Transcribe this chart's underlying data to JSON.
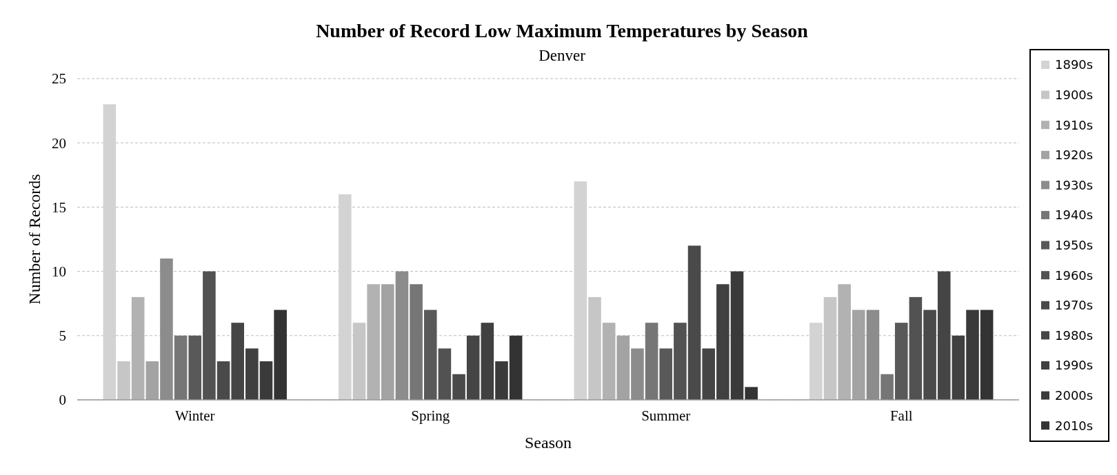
{
  "chart_data": {
    "type": "bar",
    "title": "Number of Record Low Maximum Temperatures by Season",
    "subtitle": "Denver",
    "xlabel": "Season",
    "ylabel": "Number of Records",
    "categories": [
      "Winter",
      "Spring",
      "Summer",
      "Fall"
    ],
    "series": [
      {
        "name": "1890s",
        "color": "#d3d3d3",
        "values": [
          23,
          16,
          17,
          6
        ]
      },
      {
        "name": "1900s",
        "color": "#c6c6c6",
        "values": [
          3,
          6,
          8,
          8
        ]
      },
      {
        "name": "1910s",
        "color": "#b2b2b2",
        "values": [
          8,
          9,
          6,
          9
        ]
      },
      {
        "name": "1920s",
        "color": "#a3a3a3",
        "values": [
          3,
          9,
          5,
          7
        ]
      },
      {
        "name": "1930s",
        "color": "#8c8c8c",
        "values": [
          11,
          10,
          4,
          7
        ]
      },
      {
        "name": "1940s",
        "color": "#767676",
        "values": [
          5,
          9,
          6,
          2
        ]
      },
      {
        "name": "1950s",
        "color": "#595959",
        "values": [
          5,
          7,
          4,
          6
        ]
      },
      {
        "name": "1960s",
        "color": "#525252",
        "values": [
          10,
          4,
          6,
          8
        ]
      },
      {
        "name": "1970s",
        "color": "#4a4a4a",
        "values": [
          3,
          2,
          12,
          7
        ]
      },
      {
        "name": "1980s",
        "color": "#454545",
        "values": [
          6,
          5,
          4,
          10
        ]
      },
      {
        "name": "1990s",
        "color": "#404040",
        "values": [
          4,
          6,
          9,
          5
        ]
      },
      {
        "name": "2000s",
        "color": "#3a3a3a",
        "values": [
          3,
          3,
          10,
          7
        ]
      },
      {
        "name": "2010s",
        "color": "#333333",
        "values": [
          7,
          5,
          1,
          7
        ]
      }
    ],
    "ylim": [
      0,
      25
    ],
    "yticks": [
      0,
      5,
      10,
      15,
      20,
      25
    ],
    "grid": "y",
    "legend": "right"
  }
}
